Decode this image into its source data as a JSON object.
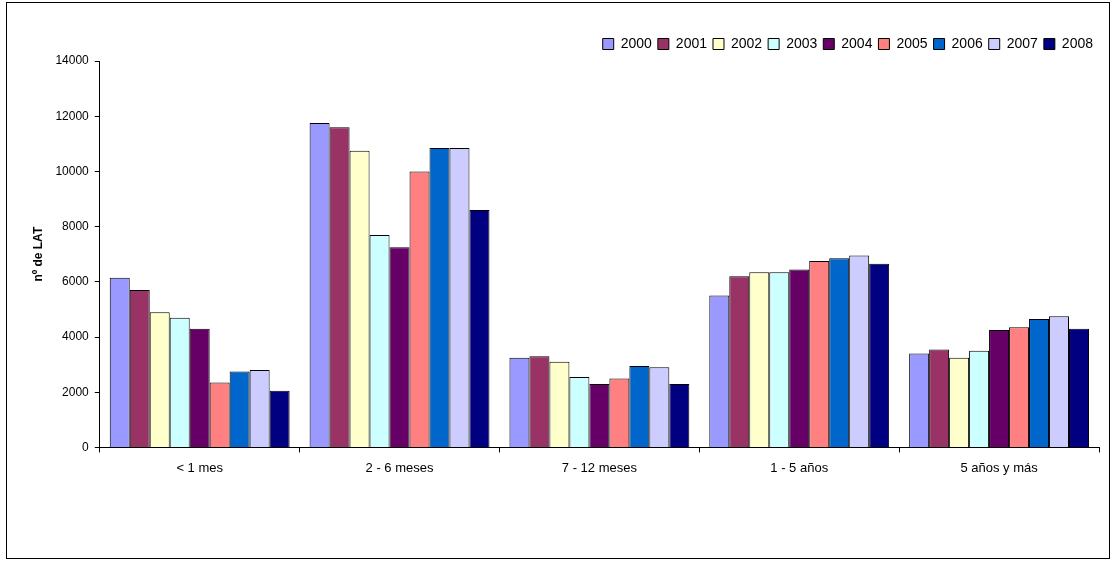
{
  "chart_data": {
    "type": "bar",
    "ylabel": "nº de LAT",
    "categories": [
      "< 1 mes",
      "2 - 6 meses",
      "7 - 12 meses",
      "1 - 5 años",
      "5 años y más"
    ],
    "ylim": [
      0,
      14000
    ],
    "yticks": [
      0,
      2000,
      4000,
      6000,
      8000,
      10000,
      12000,
      14000
    ],
    "grid": false,
    "legend": "top right",
    "series": [
      {
        "name": "2000",
        "color": "#9999ff",
        "values": [
          6150,
          11750,
          3250,
          5500,
          3400
        ]
      },
      {
        "name": "2001",
        "color": "#993366",
        "values": [
          5700,
          11600,
          3300,
          6200,
          3550
        ]
      },
      {
        "name": "2002",
        "color": "#ffffcc",
        "values": [
          4900,
          10750,
          3100,
          6350,
          3250
        ]
      },
      {
        "name": "2003",
        "color": "#ccffff",
        "values": [
          4700,
          7700,
          2550,
          6350,
          3500
        ]
      },
      {
        "name": "2004",
        "color": "#660066",
        "values": [
          4300,
          7250,
          2300,
          6450,
          4250
        ]
      },
      {
        "name": "2005",
        "color": "#ff8080",
        "values": [
          2350,
          10000,
          2500,
          6750,
          4350
        ]
      },
      {
        "name": "2006",
        "color": "#0066cc",
        "values": [
          2750,
          10850,
          2950,
          6850,
          4650
        ]
      },
      {
        "name": "2007",
        "color": "#ccccff",
        "values": [
          2800,
          10850,
          2900,
          6950,
          4750
        ]
      },
      {
        "name": "2008",
        "color": "#000080",
        "values": [
          2050,
          8600,
          2300,
          6650,
          4300
        ]
      }
    ]
  }
}
